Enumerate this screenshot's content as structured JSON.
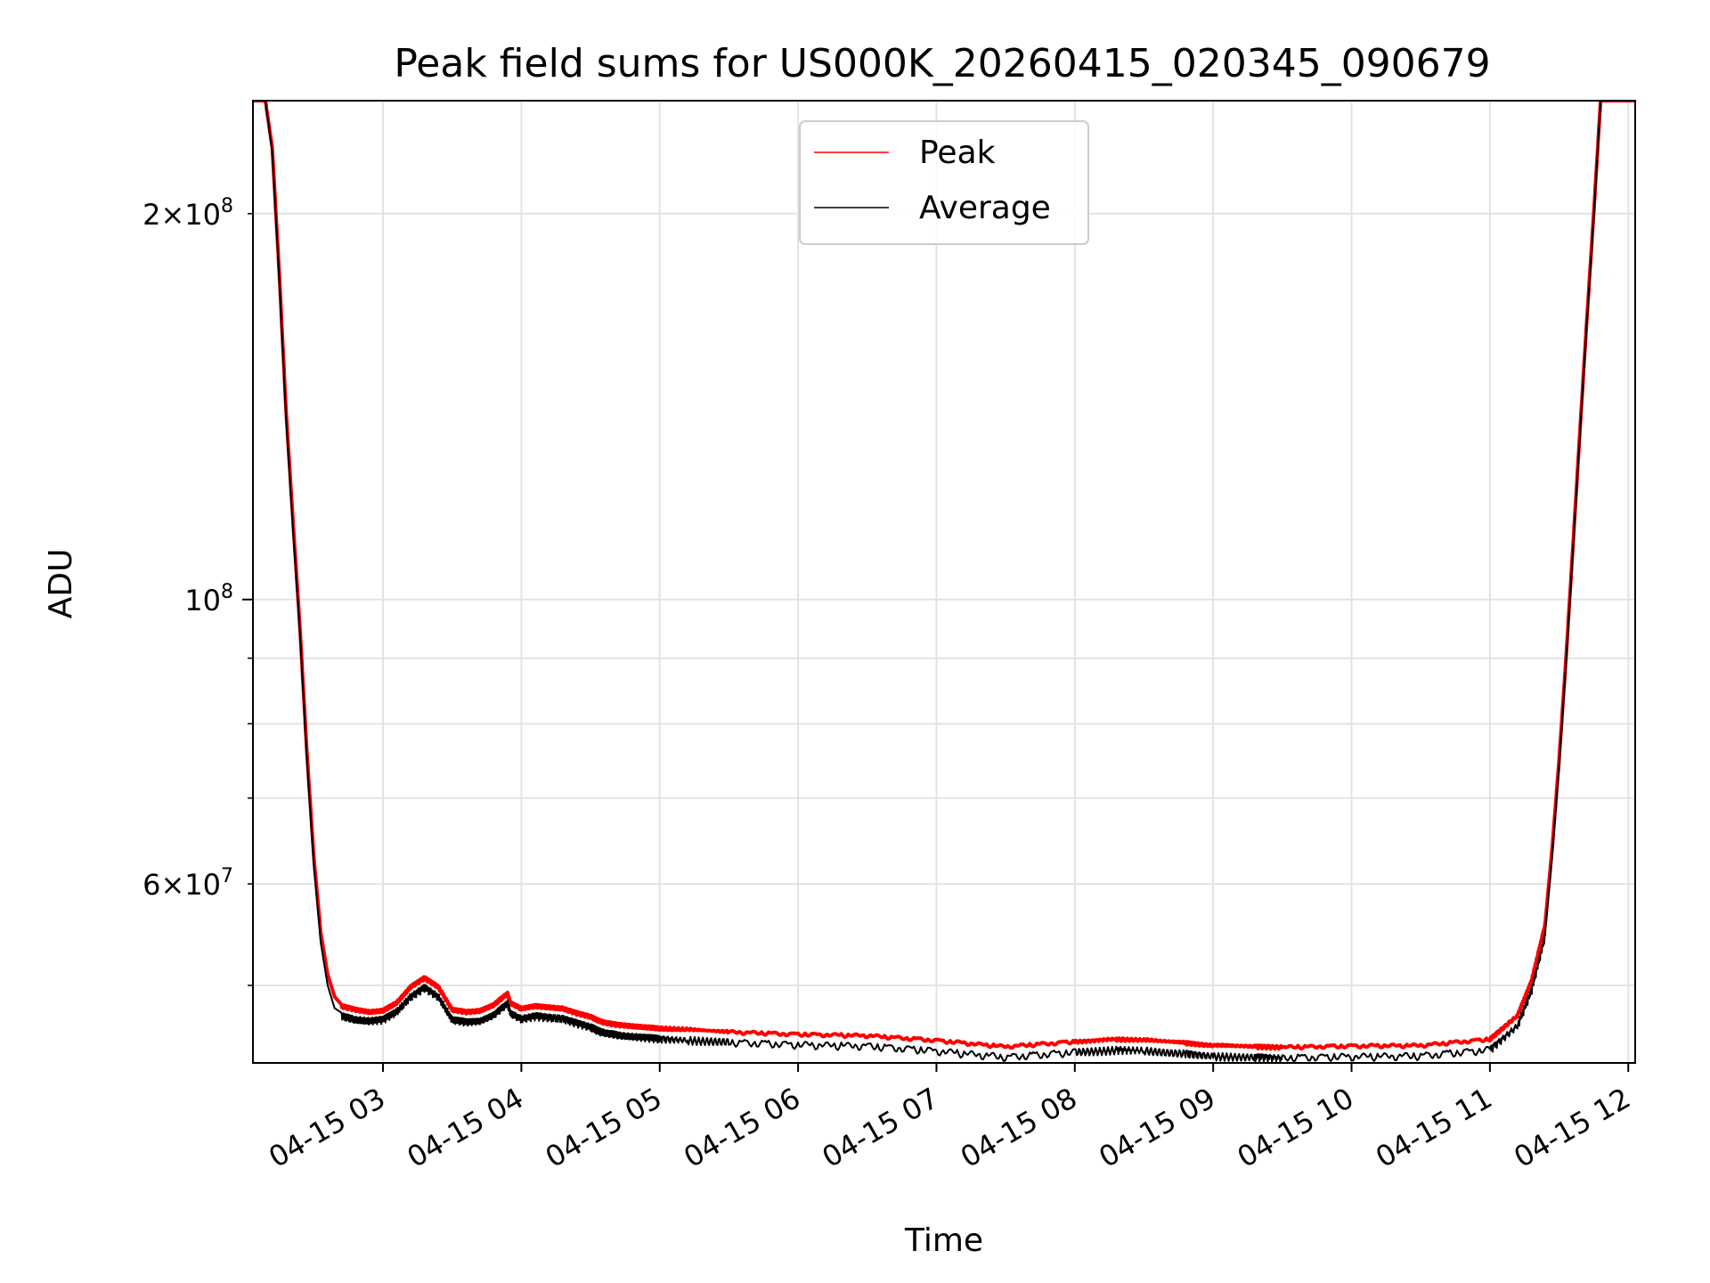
{
  "chart_data": {
    "type": "line",
    "title": "Peak field sums for US000K_20260415_020345_090679",
    "xlabel": "Time",
    "ylabel": "ADU",
    "y_scale": "log",
    "ylim": [
      43500000,
      245000000
    ],
    "xlim_hours": [
      2.06,
      12.05
    ],
    "grid": true,
    "legend_position": "top-center",
    "x_ticks": [
      {
        "hour": 3,
        "label": "04-15 03"
      },
      {
        "hour": 4,
        "label": "04-15 04"
      },
      {
        "hour": 5,
        "label": "04-15 05"
      },
      {
        "hour": 6,
        "label": "04-15 06"
      },
      {
        "hour": 7,
        "label": "04-15 07"
      },
      {
        "hour": 8,
        "label": "04-15 08"
      },
      {
        "hour": 9,
        "label": "04-15 09"
      },
      {
        "hour": 10,
        "label": "04-15 10"
      },
      {
        "hour": 11,
        "label": "04-15 11"
      },
      {
        "hour": 12,
        "label": "04-15 12"
      }
    ],
    "y_ticks_major": [
      {
        "value": 100000000,
        "base": "10",
        "exp": "8"
      }
    ],
    "y_ticks_minor": [
      {
        "value": 60000000,
        "mantissa": "6",
        "exp": "7"
      },
      {
        "value": 200000000,
        "mantissa": "2",
        "exp": "8"
      }
    ],
    "y_gridlines": [
      50000000,
      60000000,
      70000000,
      80000000,
      90000000,
      100000000,
      200000000
    ],
    "series": [
      {
        "name": "Peak",
        "color": "#ff0000",
        "x_hours": [
          2.06,
          2.1,
          2.15,
          2.2,
          2.25,
          2.3,
          2.35,
          2.4,
          2.45,
          2.5,
          2.55,
          2.6,
          2.65,
          2.7,
          2.8,
          2.9,
          3.0,
          3.1,
          3.2,
          3.3,
          3.4,
          3.5,
          3.6,
          3.7,
          3.8,
          3.9,
          3.92,
          4.0,
          4.1,
          4.2,
          4.3,
          4.4,
          4.5,
          4.55,
          4.6,
          4.7,
          4.8,
          4.9,
          5.0,
          5.2,
          5.5,
          6.0,
          6.5,
          7.0,
          7.5,
          8.0,
          8.3,
          8.5,
          8.8,
          9.0,
          9.3,
          9.5,
          10.0,
          10.5,
          11.0,
          11.2,
          11.3,
          11.4,
          11.45,
          11.5,
          11.55,
          11.6,
          11.65,
          11.7,
          11.75,
          11.8,
          11.85,
          11.9,
          11.95,
          12.0,
          12.05
        ],
        "values": [
          245000000,
          245000000,
          245000000,
          225000000,
          180000000,
          140000000,
          115000000,
          95000000,
          76000000,
          63000000,
          55000000,
          51000000,
          49000000,
          48300000,
          48000000,
          47800000,
          47900000,
          48600000,
          50000000,
          50800000,
          50000000,
          48000000,
          47800000,
          47900000,
          48400000,
          49400000,
          48600000,
          48100000,
          48300000,
          48200000,
          48100000,
          47700000,
          47400000,
          47100000,
          46900000,
          46700000,
          46600000,
          46500000,
          46400000,
          46300000,
          46100000,
          45900000,
          45800000,
          45400000,
          44900000,
          45300000,
          45500000,
          45450000,
          45200000,
          45000000,
          44900000,
          44850000,
          44950000,
          45000000,
          45500000,
          47500000,
          50500000,
          56000000,
          64000000,
          75000000,
          90000000,
          110000000,
          135000000,
          165000000,
          200000000,
          245000000,
          245000000,
          245000000,
          245000000,
          245000000,
          245000000
        ]
      },
      {
        "name": "Average",
        "color": "#000000",
        "x_hours": [
          2.06,
          2.1,
          2.15,
          2.2,
          2.25,
          2.3,
          2.35,
          2.4,
          2.45,
          2.5,
          2.55,
          2.6,
          2.65,
          2.7,
          2.8,
          2.9,
          3.0,
          3.1,
          3.2,
          3.3,
          3.4,
          3.5,
          3.6,
          3.7,
          3.8,
          3.9,
          3.92,
          4.0,
          4.1,
          4.2,
          4.3,
          4.4,
          4.5,
          4.55,
          4.6,
          4.7,
          4.8,
          4.9,
          5.0,
          5.2,
          5.5,
          6.0,
          6.5,
          7.0,
          7.5,
          8.0,
          8.3,
          8.5,
          8.8,
          9.0,
          9.3,
          9.5,
          10.0,
          10.5,
          11.0,
          11.2,
          11.3,
          11.4,
          11.45,
          11.5,
          11.55,
          11.6,
          11.65,
          11.7,
          11.75,
          11.8,
          11.85,
          11.9,
          11.95,
          12.0,
          12.05
        ],
        "values": [
          245000000,
          245000000,
          245000000,
          223000000,
          178000000,
          138000000,
          113000000,
          94000000,
          75000000,
          62000000,
          54000000,
          50000000,
          48000000,
          47600000,
          47300000,
          47200000,
          47300000,
          48000000,
          49300000,
          50100000,
          49300000,
          47300000,
          47100000,
          47200000,
          47700000,
          48700000,
          47900000,
          47400000,
          47600000,
          47500000,
          47400000,
          47000000,
          46700000,
          46400000,
          46200000,
          46000000,
          45900000,
          45800000,
          45700000,
          45600000,
          45400000,
          45200000,
          45100000,
          44700000,
          44200000,
          44600000,
          44800000,
          44750000,
          44500000,
          44300000,
          44200000,
          44150000,
          44250000,
          44300000,
          44800000,
          46800000,
          49800000,
          55000000,
          63000000,
          74000000,
          89000000,
          109000000,
          134000000,
          164000000,
          198000000,
          245000000,
          245000000,
          245000000,
          245000000,
          245000000,
          245000000
        ]
      }
    ]
  }
}
